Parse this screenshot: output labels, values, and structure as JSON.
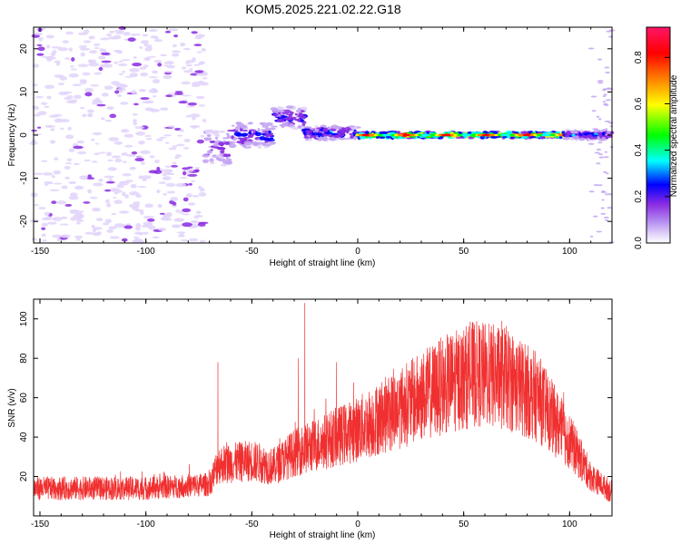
{
  "title": "KOM5.2025.221.02.22.G18",
  "chart_data": [
    {
      "type": "heatmap",
      "name": "spectrogram",
      "xlabel": "Height of straight line (km)",
      "ylabel": "Frequency (Hz)",
      "xlim": [
        -153,
        120
      ],
      "ylim": [
        -25,
        25
      ],
      "xticks": [
        -150,
        -100,
        -50,
        0,
        50,
        100
      ],
      "yticks": [
        -20,
        -10,
        0,
        10,
        20
      ],
      "colorbar": {
        "label": "Normalized spectral amplitude",
        "range": [
          0,
          0.93
        ],
        "ticks": [
          0.0,
          0.2,
          0.4,
          0.6,
          0.8
        ],
        "colors": [
          "#ffffff",
          "#cbb1f5",
          "#8a2be2",
          "#0000ff",
          "#00ffff",
          "#00ff00",
          "#ffff00",
          "#ff8000",
          "#ff0000",
          "#ff1493"
        ]
      },
      "features": [
        {
          "x_range": [
            -153,
            -72
          ],
          "freq_range": [
            -25,
            25
          ],
          "level": 0.12,
          "description": "scattered weak noise"
        },
        {
          "x_range": [
            -72,
            -60
          ],
          "freq_center": -3,
          "freq_width": 8,
          "level": 0.25
        },
        {
          "x_range": [
            -60,
            -40
          ],
          "freq_center": 0,
          "freq_width": 6,
          "level": 0.3
        },
        {
          "x_range": [
            -40,
            -25
          ],
          "freq_center": 4,
          "freq_width": 5,
          "level": 0.3
        },
        {
          "x_range": [
            -25,
            0
          ],
          "freq_center": 0.5,
          "freq_width": 3,
          "level": 0.35
        },
        {
          "x_range": [
            0,
            98
          ],
          "freq_center": 0,
          "freq_width": 1.2,
          "level": 0.85
        },
        {
          "x_range": [
            98,
            120
          ],
          "freq_center": 0,
          "freq_width": 2,
          "level": 0.35
        }
      ]
    },
    {
      "type": "line",
      "name": "snr",
      "xlabel": "Height of straight line (km)",
      "ylabel": "SNR (v/v)",
      "xlim": [
        -153,
        120
      ],
      "ylim": [
        0,
        110
      ],
      "xticks": [
        -150,
        -100,
        -50,
        0,
        50,
        100
      ],
      "yticks": [
        20,
        40,
        60,
        80,
        100
      ],
      "color": "#f03030",
      "envelope": [
        {
          "x": -153,
          "mean": 14
        },
        {
          "x": -100,
          "mean": 14
        },
        {
          "x": -70,
          "mean": 16
        },
        {
          "x": -66,
          "mean": 26
        },
        {
          "x": -50,
          "mean": 28
        },
        {
          "x": -40,
          "mean": 25
        },
        {
          "x": -30,
          "mean": 32
        },
        {
          "x": -15,
          "mean": 38
        },
        {
          "x": 0,
          "mean": 44
        },
        {
          "x": 20,
          "mean": 55
        },
        {
          "x": 40,
          "mean": 66
        },
        {
          "x": 55,
          "mean": 72
        },
        {
          "x": 70,
          "mean": 70
        },
        {
          "x": 85,
          "mean": 60
        },
        {
          "x": 100,
          "mean": 38
        },
        {
          "x": 110,
          "mean": 20
        },
        {
          "x": 120,
          "mean": 12
        }
      ],
      "peaks": [
        {
          "x": -66,
          "value": 78
        },
        {
          "x": -28,
          "value": 80
        },
        {
          "x": -25,
          "value": 108
        },
        {
          "x": -10,
          "value": 78
        },
        {
          "x": 55,
          "value": 90
        },
        {
          "x": 68,
          "value": 99
        }
      ]
    }
  ]
}
